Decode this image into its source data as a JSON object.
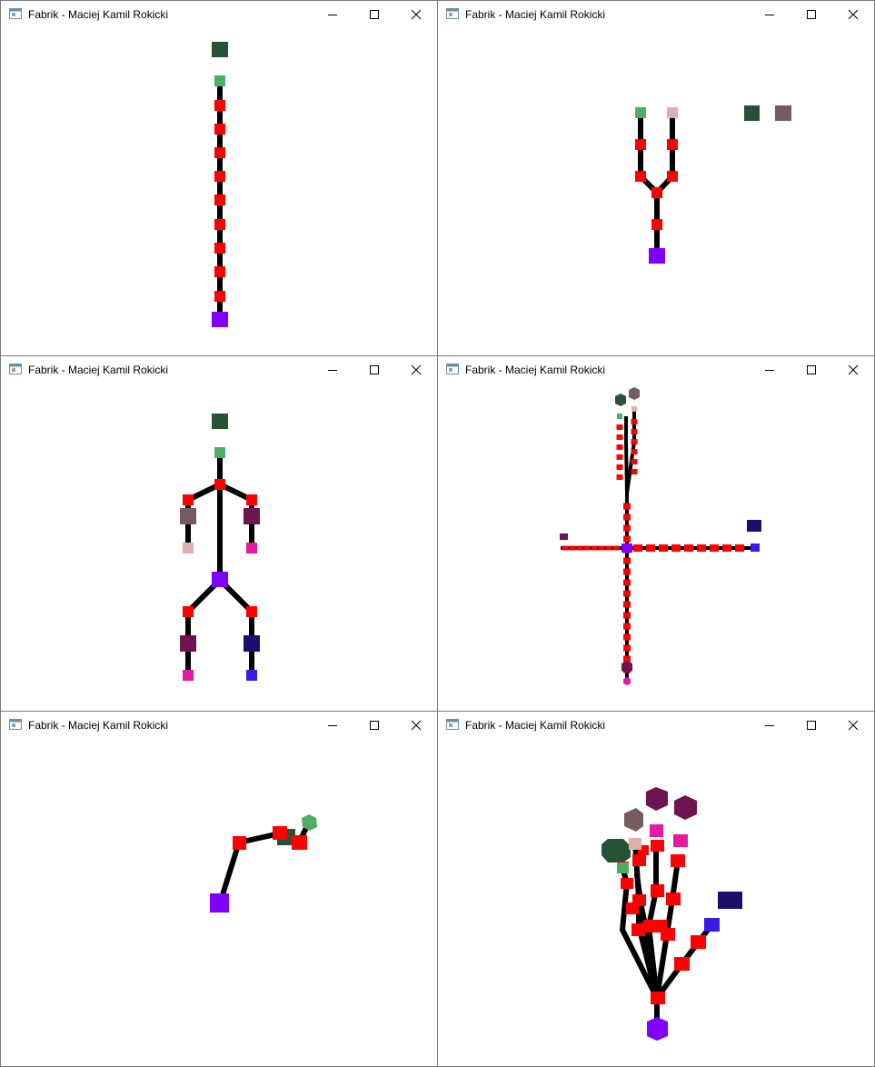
{
  "windows": [
    {
      "title": "Fabrik - Maciej Kamil Rokicki",
      "scene": "chain"
    },
    {
      "title": "Fabrik - Maciej Kamil Rokicki",
      "scene": "fork"
    },
    {
      "title": "Fabrik - Maciej Kamil Rokicki",
      "scene": "stick-figure"
    },
    {
      "title": "Fabrik - Maciej Kamil Rokicki",
      "scene": "cross-3d"
    },
    {
      "title": "Fabrik - Maciej Kamil Rokicki",
      "scene": "arm-3d"
    },
    {
      "title": "Fabrik - Maciej Kamil Rokicki",
      "scene": "hand-3d"
    }
  ],
  "icons": {
    "app": "app-window-icon",
    "minimize": "minimize-icon",
    "maximize": "maximize-icon",
    "close": "close-icon"
  },
  "colors": {
    "bone": "#000000",
    "joint": "#ff0000",
    "root": "#8000ff",
    "target_dark_green": "#275233",
    "effector_green": "#4caf65",
    "target_taupe": "#755b5f",
    "effector_pink_light": "#e0aeac",
    "target_plum": "#6e1450",
    "effector_magenta": "#e31ba1",
    "target_navy": "#1b0e6b",
    "effector_blue": "#3a1be6"
  }
}
